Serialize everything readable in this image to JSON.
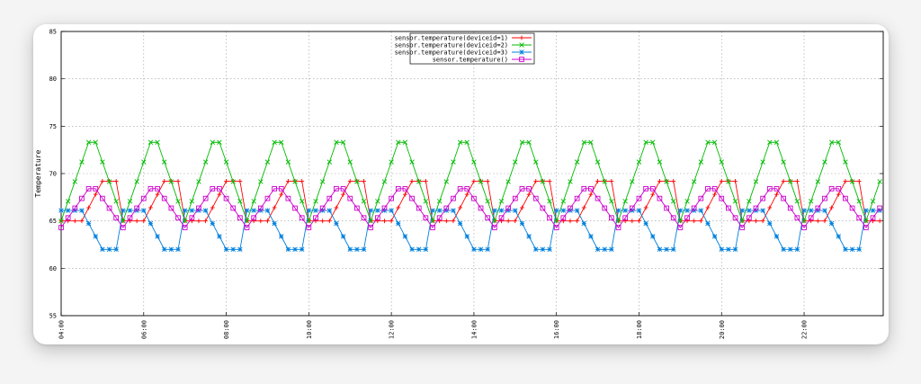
{
  "chart_data": {
    "type": "line",
    "title": "",
    "xlabel": "",
    "ylabel": "Temperature",
    "ylim": [
      55,
      85
    ],
    "xlim": [
      "04:00",
      "23:55"
    ],
    "yticks": [
      55,
      60,
      65,
      70,
      75,
      80,
      85
    ],
    "xticks": [
      "04:00",
      "06:00",
      "08:00",
      "10:00",
      "12:00",
      "14:00",
      "16:00",
      "18:00",
      "20:00",
      "22:00"
    ],
    "grid": true,
    "legend_position": "top-center",
    "sample_interval_minutes": 10,
    "series": [
      {
        "name": "sensor.temperature(deviceid=1)",
        "color": "#ff0000",
        "marker": "plus",
        "pattern": {
          "period_minutes": 90,
          "phase_minutes": 0,
          "base": 65.0,
          "peak": 69.2,
          "segments": [
            [
              0,
              3,
              65.0,
              65.0
            ],
            [
              3,
              6,
              65.0,
              69.2
            ],
            [
              6,
              8,
              69.2,
              69.2
            ],
            [
              8,
              11,
              69.2,
              65.0
            ],
            [
              11,
              18,
              65.0,
              65.0
            ]
          ]
        }
      },
      {
        "name": "sensor.temperature(deviceid=2)",
        "color": "#00bb00",
        "marker": "x",
        "pattern": {
          "period_minutes": 90,
          "phase_minutes": 0,
          "base": 65.0,
          "peak": 73.3,
          "segments": [
            [
              0,
              4,
              65.0,
              73.3
            ],
            [
              4,
              5,
              73.3,
              73.3
            ],
            [
              5,
              9,
              73.3,
              65.0
            ],
            [
              9,
              18,
              65.0,
              65.0
            ]
          ]
        }
      },
      {
        "name": "sensor.temperature(deviceid=3)",
        "color": "#0080dd",
        "marker": "star",
        "pattern": {
          "period_minutes": 90,
          "phase_minutes": 0,
          "base": 62.0,
          "peak": 66.1,
          "segments": [
            [
              0,
              3,
              66.1,
              66.1
            ],
            [
              3,
              6,
              66.1,
              62.0
            ],
            [
              6,
              8,
              62.0,
              62.0
            ],
            [
              8,
              11,
              62.0,
              66.1
            ],
            [
              11,
              18,
              66.1,
              66.1
            ]
          ]
        }
      },
      {
        "name": "sensor.temperature()",
        "color": "#cc00cc",
        "marker": "square",
        "pattern": {
          "period_minutes": 90,
          "phase_minutes": 0,
          "base": 64.3,
          "peak": 68.4,
          "segments": [
            [
              0,
              4,
              64.3,
              68.4
            ],
            [
              4,
              5,
              68.4,
              68.4
            ],
            [
              5,
              9,
              68.4,
              64.3
            ],
            [
              9,
              18,
              64.3,
              64.3
            ]
          ]
        }
      }
    ]
  }
}
